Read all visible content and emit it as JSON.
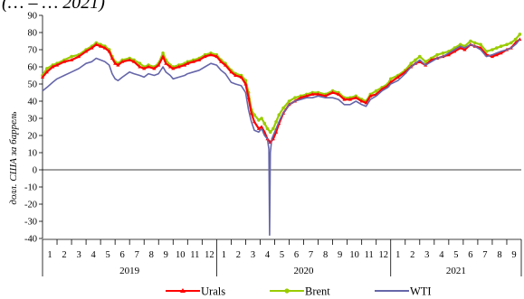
{
  "chart_data": {
    "type": "line",
    "title": "(… – … 2021)",
    "ylabel": "долл. США за баррель",
    "xlabel": "",
    "ylim": [
      -40,
      90
    ],
    "yticks": [
      -40,
      -30,
      -20,
      -10,
      0,
      10,
      20,
      30,
      40,
      50,
      60,
      70,
      80,
      90
    ],
    "grid": false,
    "legend_position": "bottom",
    "years": [
      {
        "label": "2019",
        "months": [
          "1",
          "2",
          "3",
          "4",
          "5",
          "6",
          "7",
          "8",
          "9",
          "10",
          "11",
          "12"
        ]
      },
      {
        "label": "2020",
        "months": [
          "1",
          "2",
          "3",
          "4",
          "5",
          "6",
          "7",
          "8",
          "9",
          "10",
          "11",
          "12"
        ]
      },
      {
        "label": "2021",
        "months": [
          "1",
          "2",
          "3",
          "4",
          "5",
          "6",
          "7",
          "8",
          "9"
        ]
      }
    ],
    "x_unit": "months since Jan 2019",
    "series": [
      {
        "name": "Urals",
        "color": "#ff0000",
        "marker": "triangle",
        "points": [
          [
            0.0,
            54
          ],
          [
            0.3,
            57
          ],
          [
            0.7,
            60
          ],
          [
            1.0,
            61
          ],
          [
            1.5,
            63
          ],
          [
            2.0,
            64
          ],
          [
            2.5,
            66
          ],
          [
            3.0,
            69
          ],
          [
            3.4,
            71
          ],
          [
            3.7,
            73
          ],
          [
            4.0,
            72
          ],
          [
            4.3,
            71
          ],
          [
            4.6,
            69
          ],
          [
            4.8,
            65
          ],
          [
            5.0,
            62
          ],
          [
            5.2,
            61
          ],
          [
            5.5,
            63
          ],
          [
            6.0,
            64
          ],
          [
            6.3,
            63
          ],
          [
            6.7,
            60
          ],
          [
            7.0,
            59
          ],
          [
            7.3,
            60
          ],
          [
            7.7,
            59
          ],
          [
            8.0,
            61
          ],
          [
            8.3,
            66
          ],
          [
            8.5,
            62
          ],
          [
            8.8,
            60
          ],
          [
            9.0,
            59
          ],
          [
            9.4,
            60
          ],
          [
            9.8,
            61
          ],
          [
            10.0,
            62
          ],
          [
            10.4,
            63
          ],
          [
            10.8,
            64
          ],
          [
            11.2,
            66
          ],
          [
            11.6,
            67
          ],
          [
            12.0,
            66
          ],
          [
            12.3,
            63
          ],
          [
            12.6,
            61
          ],
          [
            13.0,
            57
          ],
          [
            13.3,
            55
          ],
          [
            13.7,
            54
          ],
          [
            14.0,
            50
          ],
          [
            14.2,
            42
          ],
          [
            14.4,
            33
          ],
          [
            14.6,
            28
          ],
          [
            14.9,
            24
          ],
          [
            15.1,
            25
          ],
          [
            15.3,
            22
          ],
          [
            15.5,
            18
          ],
          [
            15.7,
            16
          ],
          [
            15.9,
            18
          ],
          [
            16.1,
            22
          ],
          [
            16.3,
            27
          ],
          [
            16.6,
            33
          ],
          [
            17.0,
            38
          ],
          [
            17.4,
            40
          ],
          [
            17.8,
            42
          ],
          [
            18.2,
            43
          ],
          [
            18.6,
            44
          ],
          [
            19.0,
            44
          ],
          [
            19.5,
            43
          ],
          [
            20.0,
            45
          ],
          [
            20.4,
            44
          ],
          [
            20.8,
            41
          ],
          [
            21.2,
            41
          ],
          [
            21.6,
            42
          ],
          [
            22.0,
            40
          ],
          [
            22.3,
            39
          ],
          [
            22.6,
            43
          ],
          [
            23.0,
            44
          ],
          [
            23.4,
            47
          ],
          [
            23.8,
            49
          ],
          [
            24.0,
            51
          ],
          [
            24.5,
            54
          ],
          [
            25.0,
            57
          ],
          [
            25.4,
            60
          ],
          [
            25.7,
            62
          ],
          [
            26.0,
            63
          ],
          [
            26.4,
            61
          ],
          [
            26.8,
            64
          ],
          [
            27.2,
            65
          ],
          [
            27.6,
            66
          ],
          [
            28.0,
            67
          ],
          [
            28.4,
            69
          ],
          [
            28.8,
            71
          ],
          [
            29.1,
            70
          ],
          [
            29.5,
            73
          ],
          [
            29.8,
            72
          ],
          [
            30.2,
            71
          ],
          [
            30.6,
            67
          ],
          [
            31.0,
            66
          ],
          [
            31.3,
            67
          ],
          [
            31.6,
            68
          ],
          [
            32.0,
            70
          ],
          [
            32.3,
            71
          ],
          [
            32.6,
            74
          ],
          [
            32.9,
            76
          ]
        ]
      },
      {
        "name": "Brent",
        "color": "#99cc00",
        "marker": "circle",
        "points": [
          [
            0.0,
            55
          ],
          [
            0.3,
            59
          ],
          [
            0.7,
            61
          ],
          [
            1.0,
            62
          ],
          [
            1.5,
            64
          ],
          [
            2.0,
            66
          ],
          [
            2.5,
            67
          ],
          [
            3.0,
            70
          ],
          [
            3.4,
            72
          ],
          [
            3.7,
            74
          ],
          [
            4.0,
            73
          ],
          [
            4.3,
            72
          ],
          [
            4.6,
            70
          ],
          [
            4.8,
            66
          ],
          [
            5.0,
            63
          ],
          [
            5.2,
            62
          ],
          [
            5.5,
            64
          ],
          [
            6.0,
            65
          ],
          [
            6.3,
            64
          ],
          [
            6.7,
            62
          ],
          [
            7.0,
            60
          ],
          [
            7.3,
            61
          ],
          [
            7.7,
            60
          ],
          [
            8.0,
            62
          ],
          [
            8.3,
            68
          ],
          [
            8.5,
            64
          ],
          [
            8.8,
            61
          ],
          [
            9.0,
            60
          ],
          [
            9.4,
            61
          ],
          [
            9.8,
            62
          ],
          [
            10.0,
            63
          ],
          [
            10.4,
            64
          ],
          [
            10.8,
            65
          ],
          [
            11.2,
            67
          ],
          [
            11.6,
            68
          ],
          [
            12.0,
            67
          ],
          [
            12.3,
            64
          ],
          [
            12.6,
            62
          ],
          [
            13.0,
            58
          ],
          [
            13.3,
            56
          ],
          [
            13.7,
            55
          ],
          [
            14.0,
            52
          ],
          [
            14.2,
            45
          ],
          [
            14.4,
            35
          ],
          [
            14.6,
            32
          ],
          [
            14.9,
            29
          ],
          [
            15.1,
            30
          ],
          [
            15.3,
            27
          ],
          [
            15.5,
            24
          ],
          [
            15.7,
            22
          ],
          [
            15.9,
            24
          ],
          [
            16.1,
            28
          ],
          [
            16.3,
            32
          ],
          [
            16.6,
            36
          ],
          [
            17.0,
            40
          ],
          [
            17.4,
            42
          ],
          [
            17.8,
            43
          ],
          [
            18.2,
            44
          ],
          [
            18.6,
            45
          ],
          [
            19.0,
            45
          ],
          [
            19.5,
            44
          ],
          [
            20.0,
            46
          ],
          [
            20.4,
            45
          ],
          [
            20.8,
            42
          ],
          [
            21.2,
            42
          ],
          [
            21.6,
            43
          ],
          [
            22.0,
            41
          ],
          [
            22.3,
            40
          ],
          [
            22.6,
            44
          ],
          [
            23.0,
            46
          ],
          [
            23.4,
            48
          ],
          [
            23.8,
            50
          ],
          [
            24.0,
            53
          ],
          [
            24.5,
            55
          ],
          [
            25.0,
            58
          ],
          [
            25.4,
            62
          ],
          [
            25.7,
            64
          ],
          [
            26.0,
            66
          ],
          [
            26.4,
            63
          ],
          [
            26.8,
            65
          ],
          [
            27.2,
            67
          ],
          [
            27.6,
            68
          ],
          [
            28.0,
            69
          ],
          [
            28.4,
            71
          ],
          [
            28.8,
            73
          ],
          [
            29.1,
            72
          ],
          [
            29.5,
            75
          ],
          [
            29.8,
            74
          ],
          [
            30.2,
            73
          ],
          [
            30.6,
            69
          ],
          [
            31.0,
            70
          ],
          [
            31.3,
            71
          ],
          [
            31.6,
            72
          ],
          [
            32.0,
            73
          ],
          [
            32.3,
            74
          ],
          [
            32.6,
            76
          ],
          [
            32.9,
            79
          ]
        ]
      },
      {
        "name": "WTI",
        "color": "#6666aa",
        "marker": "none",
        "points": [
          [
            0.0,
            46
          ],
          [
            0.3,
            48
          ],
          [
            0.7,
            51
          ],
          [
            1.0,
            53
          ],
          [
            1.5,
            55
          ],
          [
            2.0,
            57
          ],
          [
            2.5,
            59
          ],
          [
            3.0,
            62
          ],
          [
            3.4,
            63
          ],
          [
            3.7,
            65
          ],
          [
            4.0,
            64
          ],
          [
            4.3,
            63
          ],
          [
            4.6,
            61
          ],
          [
            4.8,
            56
          ],
          [
            5.0,
            53
          ],
          [
            5.2,
            52
          ],
          [
            5.5,
            54
          ],
          [
            6.0,
            57
          ],
          [
            6.3,
            56
          ],
          [
            6.7,
            55
          ],
          [
            7.0,
            54
          ],
          [
            7.3,
            56
          ],
          [
            7.7,
            55
          ],
          [
            8.0,
            56
          ],
          [
            8.3,
            60
          ],
          [
            8.5,
            57
          ],
          [
            8.8,
            55
          ],
          [
            9.0,
            53
          ],
          [
            9.4,
            54
          ],
          [
            9.8,
            55
          ],
          [
            10.0,
            56
          ],
          [
            10.4,
            57
          ],
          [
            10.8,
            58
          ],
          [
            11.2,
            60
          ],
          [
            11.6,
            62
          ],
          [
            12.0,
            61
          ],
          [
            12.3,
            58
          ],
          [
            12.6,
            56
          ],
          [
            13.0,
            51
          ],
          [
            13.3,
            50
          ],
          [
            13.7,
            49
          ],
          [
            14.0,
            45
          ],
          [
            14.2,
            35
          ],
          [
            14.4,
            28
          ],
          [
            14.6,
            23
          ],
          [
            14.9,
            22
          ],
          [
            15.1,
            24
          ],
          [
            15.3,
            20
          ],
          [
            15.5,
            18
          ],
          [
            15.6,
            12
          ],
          [
            15.65,
            -38
          ],
          [
            15.7,
            10
          ],
          [
            15.8,
            18
          ],
          [
            16.0,
            22
          ],
          [
            16.2,
            26
          ],
          [
            16.4,
            30
          ],
          [
            16.6,
            33
          ],
          [
            17.0,
            38
          ],
          [
            17.4,
            40
          ],
          [
            17.8,
            41
          ],
          [
            18.2,
            42
          ],
          [
            18.6,
            42
          ],
          [
            19.0,
            43
          ],
          [
            19.5,
            42
          ],
          [
            20.0,
            42
          ],
          [
            20.4,
            41
          ],
          [
            20.8,
            38
          ],
          [
            21.2,
            38
          ],
          [
            21.6,
            40
          ],
          [
            22.0,
            38
          ],
          [
            22.3,
            37
          ],
          [
            22.6,
            41
          ],
          [
            23.0,
            43
          ],
          [
            23.4,
            46
          ],
          [
            23.8,
            48
          ],
          [
            24.0,
            50
          ],
          [
            24.5,
            52
          ],
          [
            25.0,
            56
          ],
          [
            25.4,
            60
          ],
          [
            25.7,
            62
          ],
          [
            26.0,
            64
          ],
          [
            26.4,
            61
          ],
          [
            26.8,
            63
          ],
          [
            27.2,
            65
          ],
          [
            27.6,
            66
          ],
          [
            28.0,
            68
          ],
          [
            28.4,
            70
          ],
          [
            28.8,
            72
          ],
          [
            29.1,
            71
          ],
          [
            29.5,
            73
          ],
          [
            29.8,
            72
          ],
          [
            30.2,
            70
          ],
          [
            30.6,
            66
          ],
          [
            31.0,
            67
          ],
          [
            31.3,
            68
          ],
          [
            31.6,
            69
          ],
          [
            32.0,
            70
          ],
          [
            32.3,
            71
          ],
          [
            32.6,
            73
          ],
          [
            32.9,
            76
          ]
        ]
      }
    ]
  }
}
